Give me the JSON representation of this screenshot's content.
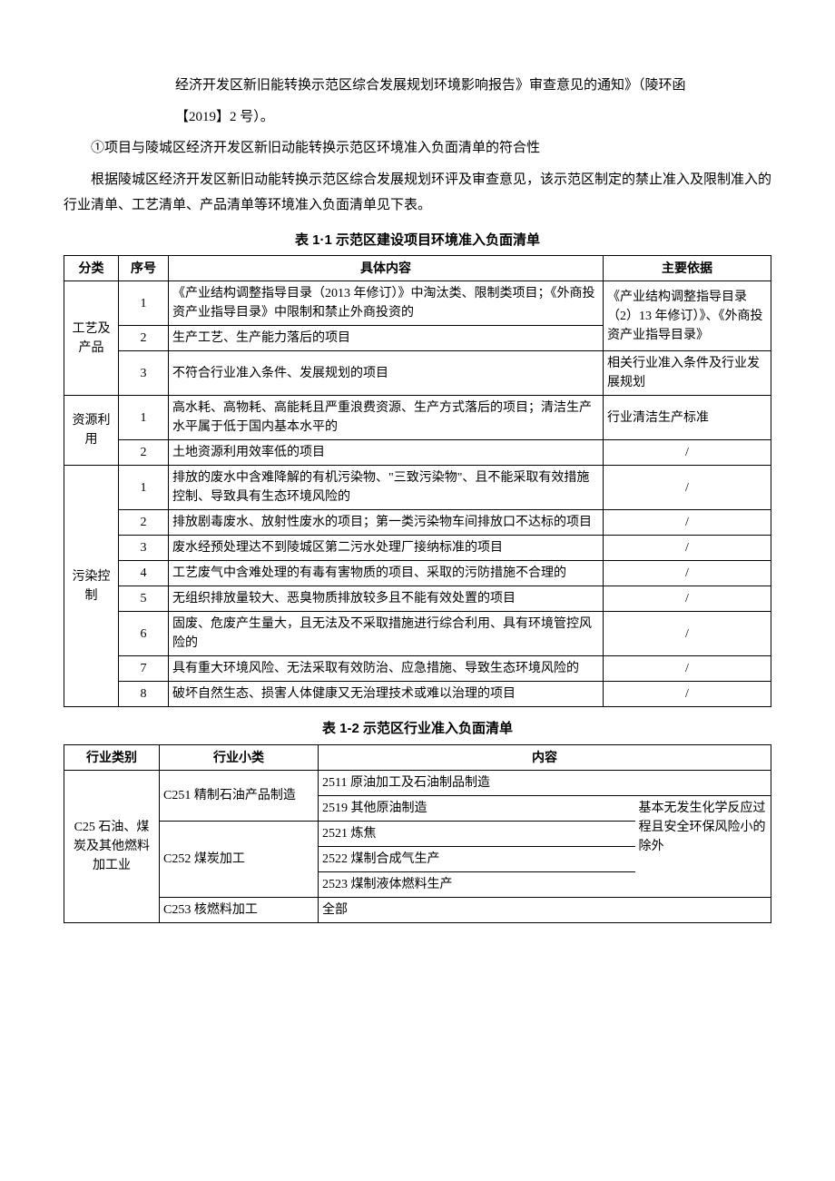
{
  "paragraphs": {
    "p1": "经济开发区新旧能转换示范区综合发展规划环境影响报告》审查意见的通知》（陵环函",
    "p2": "【2019】2 号）。",
    "p3": "①项目与陵城区经济开发区新旧动能转换示范区环境准入负面清单的符合性",
    "p4": "根据陵城区经济开发区新旧动能转换示范区综合发展规划环评及审查意见，该示范区制定的禁止准入及限制准入的行业清单、工艺清单、产品清单等环境准入负面清单见下表。"
  },
  "table1": {
    "caption": "表 1·1 示范区建设项目环境准入负面清单",
    "headers": {
      "c1": "分类",
      "c2": "序号",
      "c3": "具体内容",
      "c4": "主要依据"
    },
    "groups": [
      {
        "category": "工艺及产品",
        "rows": [
          {
            "seq": "1",
            "content": "《产业结构调整指导目录（2013 年修订）》中淘汰类、限制类项目；《外商投资产业指导目录》中限制和禁止外商投资的",
            "basis": "《产业结构调整指导目录（2）13 年修订）》、《外商投资产业指导目录》",
            "basis_rowspan": 2
          },
          {
            "seq": "2",
            "content": "生产工艺、生产能力落后的项目"
          },
          {
            "seq": "3",
            "content": "不符合行业准入条件、发展规划的项目",
            "basis": "相关行业准入条件及行业发展规划"
          }
        ]
      },
      {
        "category": "资源利用",
        "rows": [
          {
            "seq": "1",
            "content": "高水耗、高物耗、高能耗且严重浪费资源、生产方式落后的项目；清洁生产水平属于低于国内基本水平的",
            "basis": "行业清洁生产标准"
          },
          {
            "seq": "2",
            "content": "土地资源利用效率低的项目",
            "basis": "/",
            "basis_center": true
          }
        ]
      },
      {
        "category": "污染控制",
        "rows": [
          {
            "seq": "1",
            "content": "排放的废水中含难降解的有机污染物、\"三致污染物\"、且不能采取有效措施控制、导致具有生态环境风险的",
            "basis": "/",
            "basis_center": true
          },
          {
            "seq": "2",
            "content": "排放剧毒废水、放射性废水的项目；第一类污染物车间排放口不达标的项目",
            "basis": "/",
            "basis_center": true
          },
          {
            "seq": "3",
            "content": "废水经预处理达不到陵城区第二污水处理厂接纳标准的项目",
            "basis": "/",
            "basis_center": true
          },
          {
            "seq": "4",
            "content": "工艺废气中含难处理的有毒有害物质的项目、采取的污防措施不合理的",
            "basis": "/",
            "basis_center": true
          },
          {
            "seq": "5",
            "content": "无组织排放量较大、恶臭物质排放较多且不能有效处置的项目",
            "basis": "/",
            "basis_center": true
          },
          {
            "seq": "6",
            "content": "固废、危废产生量大，且无法及不采取措施进行综合利用、具有环境管控风险的",
            "basis": "/",
            "basis_center": true
          },
          {
            "seq": "7",
            "content": "具有重大环境风险、无法采取有效防治、应急措施、导致生态环境风险的",
            "basis": "/",
            "basis_center": true
          },
          {
            "seq": "8",
            "content": "破坏自然生态、损害人体健康又无治理技术或难以治理的项目",
            "basis": "/",
            "basis_center": true
          }
        ]
      }
    ]
  },
  "table2": {
    "caption": "表 1-2 示范区行业准入负面清单",
    "headers": {
      "c1": "行业类别",
      "c2": "行业小类",
      "c3": "内容"
    },
    "category": "C25 石油、煤炭及其他燃料加工业",
    "rows": [
      {
        "sub": "C251 精制石油产品制造",
        "sub_rowspan": 2,
        "detail": "2511 原油加工及石油制品制造",
        "note": "",
        "note_rowspan": 1,
        "first_note_empty": true
      },
      {
        "detail": "2519 其他原油制造",
        "note": "基本无发生化学反",
        "note_rowspan": 4,
        "note_start": true
      },
      {
        "sub": "C252 煤炭加工",
        "sub_rowspan": 3,
        "detail": "2521 炼焦",
        "note_mid": "应过程且安全环保"
      },
      {
        "detail": "2522 煤制合成气生产",
        "note_mid": "风险小的除外"
      },
      {
        "detail": "2523 煤制液体燃料生产"
      },
      {
        "sub": "C253 核燃料加工",
        "sub_rowspan": 1,
        "detail": "全部",
        "detail_colspan": 2
      }
    ],
    "note_full": "基本无发生化学反应过程且安全环保风险小的除外"
  }
}
